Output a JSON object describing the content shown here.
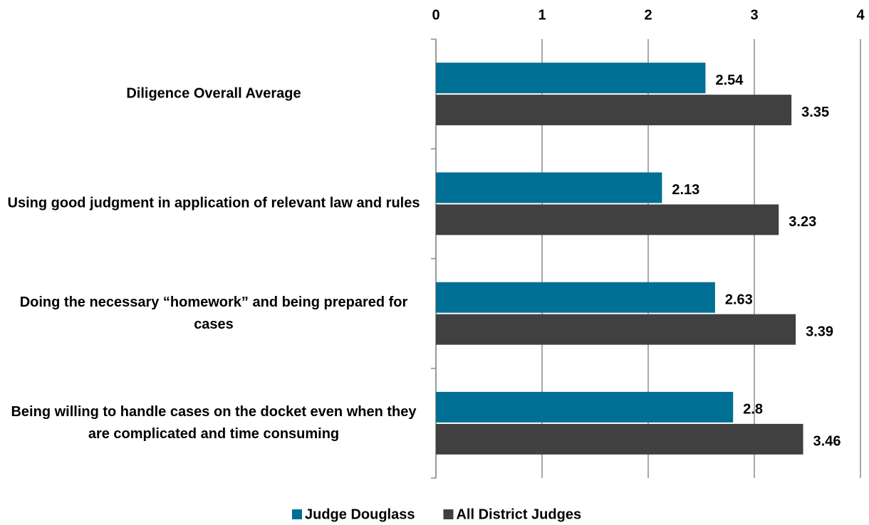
{
  "chart_data": {
    "type": "bar",
    "orientation": "horizontal",
    "categories": [
      "Diligence Overall Average",
      "Using good judgment in application of relevant law and rules",
      "Doing the necessary “homework” and being prepared for cases",
      "Being willing to handle cases on the docket even when they are complicated and time consuming"
    ],
    "series": [
      {
        "name": "Judge Douglass",
        "color": "#006f94",
        "values": [
          2.54,
          2.13,
          2.63,
          2.8
        ]
      },
      {
        "name": "All District Judges",
        "color": "#404040",
        "values": [
          3.35,
          3.23,
          3.39,
          3.46
        ]
      }
    ],
    "xlim": [
      0,
      4
    ],
    "xticks": [
      0,
      1,
      2,
      3,
      4
    ],
    "grid": true,
    "legend": "bottom"
  }
}
